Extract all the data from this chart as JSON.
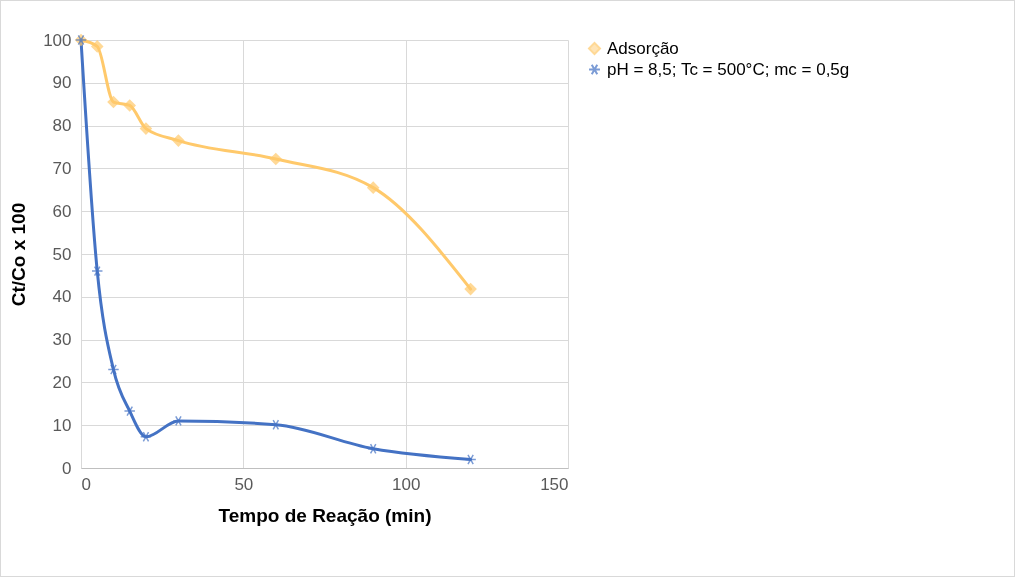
{
  "chart_data": {
    "type": "line",
    "xlabel": "Tempo de Reação (min)",
    "ylabel": "Ct/Co x 100",
    "xlim": [
      0,
      150
    ],
    "xticks": [
      0,
      50,
      100,
      150
    ],
    "ylim": [
      0,
      100
    ],
    "yticks": [
      0,
      10,
      20,
      30,
      40,
      50,
      60,
      70,
      80,
      90,
      100
    ],
    "grid": true,
    "legend": "right",
    "series": [
      {
        "name": "Adsorção",
        "color": "#ffc96b",
        "marker": "diamond",
        "x": [
          0,
          5,
          10,
          15,
          20,
          30,
          60,
          90,
          120
        ],
        "values": [
          100,
          98.5,
          85.5,
          84.7,
          79.3,
          76.5,
          72.2,
          65.5,
          41.8
        ]
      },
      {
        "name": "pH = 8,5; Tc = 500°C; mc = 0,5g",
        "color": "#4472c4",
        "marker": "cross",
        "x": [
          0,
          5,
          10,
          15,
          20,
          30,
          60,
          90,
          120
        ],
        "values": [
          100,
          46,
          23,
          13.3,
          7.3,
          11,
          10.1,
          4.5,
          2
        ]
      }
    ]
  }
}
